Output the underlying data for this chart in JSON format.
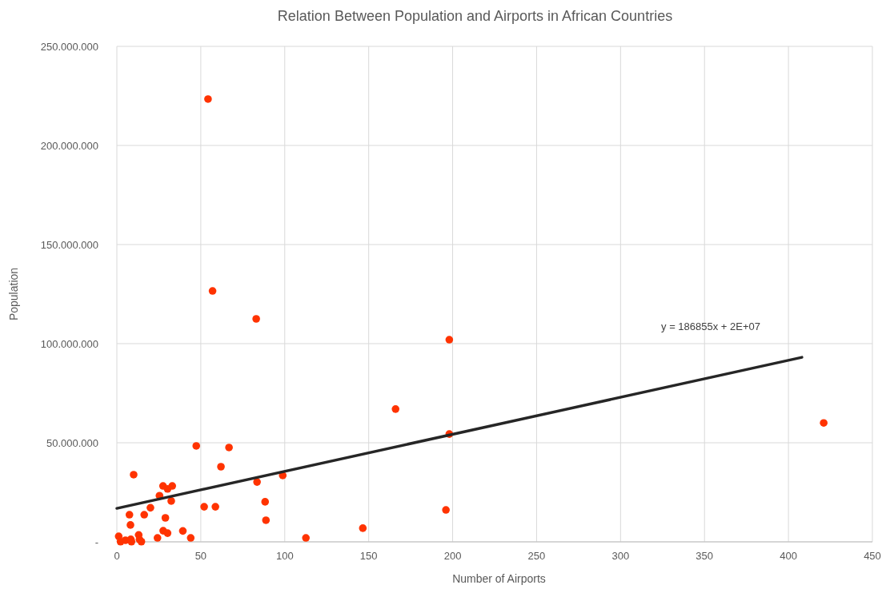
{
  "chart_data": {
    "type": "scatter",
    "title": "Relation Between Population and Airports in African Countries",
    "xlabel": "Number of Airports",
    "ylabel": "Population",
    "xlim": [
      0,
      450
    ],
    "xticks": [
      0,
      50,
      100,
      150,
      200,
      250,
      300,
      350,
      400,
      450
    ],
    "ylim": [
      0,
      250000000
    ],
    "yticks": [
      {
        "value": 0,
        "label": "-"
      },
      {
        "value": 50000000,
        "label": "50.000.000"
      },
      {
        "value": 100000000,
        "label": "100.000.000"
      },
      {
        "value": 150000000,
        "label": "150.000.000"
      },
      {
        "value": 200000000,
        "label": "200.000.000"
      },
      {
        "value": 250000000,
        "label": "250.000.000"
      }
    ],
    "grid": true,
    "marker": "circle",
    "series": [
      {
        "color": "#ff3300",
        "x": [
          54.3,
          57,
          83,
          198,
          166,
          198,
          421,
          98.8,
          83.5,
          66.8,
          47.3,
          62,
          52,
          58.7,
          88.3,
          88.8,
          112.6,
          146.5,
          196,
          10,
          27.5,
          30.2,
          33,
          25.4,
          32.4,
          20,
          7.5,
          16.3,
          8.1,
          28.9,
          27.6,
          30.2,
          39.3,
          44,
          24.2,
          1.1,
          2.2,
          5.1,
          8.3,
          8.7,
          13,
          14.6,
          13.5
        ],
        "values": [
          223400000,
          126600000,
          112500000,
          102000000,
          67000000,
          54400000,
          60000000,
          33500000,
          30200000,
          47600000,
          48400000,
          37900000,
          17700000,
          17700000,
          20200000,
          10900000,
          2000000,
          6900000,
          16100000,
          33900000,
          28200000,
          26700000,
          28200000,
          23300000,
          20600000,
          17200000,
          13700000,
          13700000,
          8500000,
          12100000,
          5600000,
          4400000,
          5500000,
          2000000,
          2000000,
          2800000,
          100000,
          800000,
          1300000,
          100000,
          3500000,
          100000,
          1200000
        ]
      },
      {
        "type": "line",
        "color": "#262626",
        "marker": "none",
        "x": [
          0,
          408
        ],
        "values": [
          16900000,
          93100000
        ]
      }
    ],
    "annotations": [
      "y = 186855x + 2E+07"
    ]
  }
}
